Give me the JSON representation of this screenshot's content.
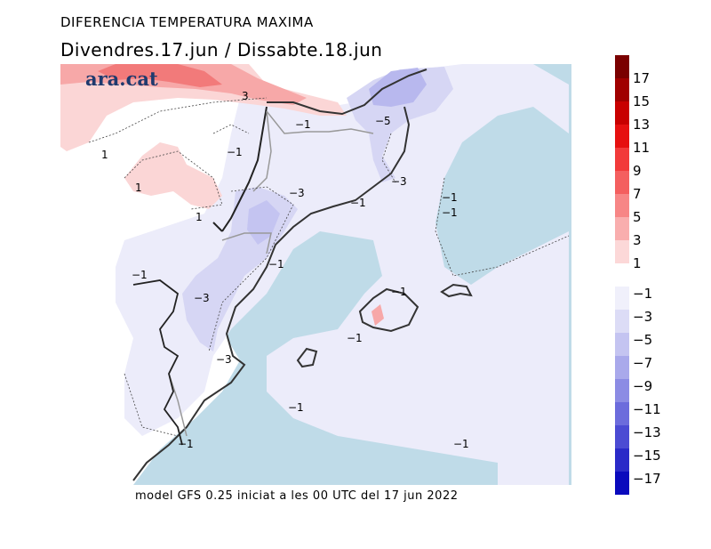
{
  "title": "DIFERENCIA TEMPERATURA MAXIMA",
  "subtitle": "Divendres.17.jun  /  Dissabte.18.jun",
  "logo": "ara.cat",
  "footer": "model GFS 0.25 iniciat a les 00 UTC del 17 jun 2022",
  "colors": {
    "sea": "#bfdbe8",
    "land_neutral": "#ffffff",
    "neg_1_3": "#ececfa",
    "neg_3_5": "#d6d6f4",
    "neg_5_7": "#b8b8ee",
    "pos_1_3": "#fbd6d6",
    "pos_3_5": "#f7a8a8",
    "pos_5_7": "#f27a7a"
  },
  "legend": {
    "positive": [
      {
        "label": "17",
        "color": "#7a0000"
      },
      {
        "label": "15",
        "color": "#a00000"
      },
      {
        "label": "13",
        "color": "#c80000"
      },
      {
        "label": "11",
        "color": "#e61010"
      },
      {
        "label": "9",
        "color": "#f23a3a"
      },
      {
        "label": "7",
        "color": "#f45f5f"
      },
      {
        "label": "5",
        "color": "#f78686"
      },
      {
        "label": "3",
        "color": "#f9aeae"
      },
      {
        "label": "1",
        "color": "#fcd8d8"
      }
    ],
    "negative": [
      {
        "label": "−1",
        "color": "#f0f0fb"
      },
      {
        "label": "−3",
        "color": "#dcdcf6"
      },
      {
        "label": "−5",
        "color": "#c4c4f1"
      },
      {
        "label": "−7",
        "color": "#a9a9eb"
      },
      {
        "label": "−9",
        "color": "#8c8ce4"
      },
      {
        "label": "−11",
        "color": "#6c6cdc"
      },
      {
        "label": "−13",
        "color": "#4b4bd3"
      },
      {
        "label": "−15",
        "color": "#2a2ac8"
      },
      {
        "label": "−17",
        "color": "#0a0abd"
      }
    ]
  },
  "contour_labels": {
    "l1": "3",
    "l2": "−1",
    "l3": "−5",
    "l4": "1",
    "l5": "−1",
    "l6": "1",
    "l7": "−3",
    "l8": "1",
    "l9": "−1",
    "l10": "−3",
    "l11": "−1",
    "l12": "−1",
    "l13": "−1",
    "l14": "−1",
    "l15": "−3",
    "l16": "−1",
    "l17": "−3",
    "l18": "−1",
    "l19": "−1",
    "l20": "−1",
    "l21": "−1"
  }
}
